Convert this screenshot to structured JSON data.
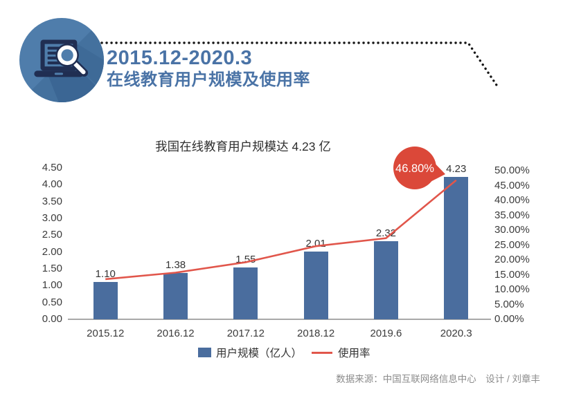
{
  "header": {
    "title_line1": "2015.12-2020.3",
    "title_line2": "在线教育用户规模及使用率",
    "accent_color": "#4a73a6",
    "icon": "laptop-magnifier-search-icon"
  },
  "chart": {
    "title": "我国在线教育用户规模达 4.23 亿",
    "legend": [
      {
        "label": "用户规模（亿人）",
        "type": "bar",
        "color": "#4a6d9e"
      },
      {
        "label": "使用率",
        "type": "line",
        "color": "#e1564b"
      }
    ]
  },
  "chart_data": {
    "type": "bar",
    "title": "我国在线教育用户规模达 4.23 亿",
    "categories": [
      "2015.12",
      "2016.12",
      "2017.12",
      "2018.12",
      "2019.6",
      "2020.3"
    ],
    "series": [
      {
        "name": "用户规模（亿人）",
        "type": "bar",
        "axis": "left",
        "color": "#4a6d9e",
        "values": [
          1.1,
          1.38,
          1.55,
          2.01,
          2.32,
          4.23
        ],
        "value_labels": [
          "1.10",
          "1.38",
          "1.55",
          "2.01",
          "2.32",
          "4.23"
        ]
      },
      {
        "name": "使用率",
        "type": "line",
        "axis": "right",
        "color": "#e1564b",
        "values_percent": [
          13.5,
          15.7,
          19.2,
          24.6,
          27.3,
          46.8
        ],
        "callout": {
          "category": "2020.3",
          "label": "46.80%",
          "color": "#db4839",
          "text_color": "#ffffff"
        }
      }
    ],
    "left_axis": {
      "min": 0,
      "max": 4.5,
      "step": 0.5,
      "format": "two-decimals"
    },
    "right_axis": {
      "min": 0,
      "max": 50,
      "step": 5,
      "format": "two-decimals-percent"
    },
    "grid": false,
    "legend_position": "bottom"
  },
  "footer": {
    "credit": "数据来源：中国互联网络信息中心　设计 / 刘章丰"
  }
}
